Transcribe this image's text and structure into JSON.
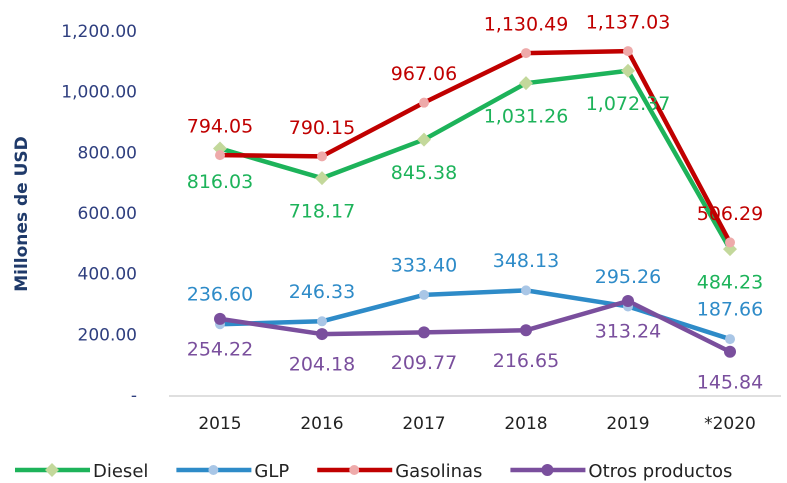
{
  "chart_data": {
    "type": "line",
    "ylabel": "Millones de USD",
    "categories": [
      "2015",
      "2016",
      "2017",
      "2018",
      "2019",
      "*2020"
    ],
    "ylim": [
      0,
      1200
    ],
    "yticks": [
      {
        "value": 0,
        "label": "-"
      },
      {
        "value": 200,
        "label": "200.00"
      },
      {
        "value": 400,
        "label": "400.00"
      },
      {
        "value": 600,
        "label": "600.00"
      },
      {
        "value": 800,
        "label": "800.00"
      },
      {
        "value": 1000,
        "label": "1,000.00"
      },
      {
        "value": 1200,
        "label": "1,200.00"
      }
    ],
    "grid": false,
    "legend": "bottom",
    "series": [
      {
        "name": "Diesel",
        "color": "#1db35a",
        "marker": "diamond",
        "marker_color": "#c3d89b",
        "values": [
          816.03,
          718.17,
          845.38,
          1031.26,
          1072.37,
          484.23
        ],
        "value_labels": [
          "816.03",
          "718.17",
          "845.38",
          "1,031.26",
          "1,072.37",
          "484.23"
        ]
      },
      {
        "name": "GLP",
        "color": "#2e8bc8",
        "marker": "circle",
        "marker_color": "#a9c6e6",
        "values": [
          236.6,
          246.33,
          333.4,
          348.13,
          295.26,
          187.66
        ],
        "value_labels": [
          "236.60",
          "246.33",
          "333.40",
          "348.13",
          "295.26",
          "187.66"
        ]
      },
      {
        "name": "Gasolinas",
        "color": "#c00000",
        "marker": "circle",
        "marker_color": "#eeaaaa",
        "values": [
          794.05,
          790.15,
          967.06,
          1130.49,
          1137.03,
          506.29
        ],
        "value_labels": [
          "794.05",
          "790.15",
          "967.06",
          "1,130.49",
          "1,137.03",
          "506.29"
        ]
      },
      {
        "name": "Otros productos",
        "color": "#7a4f9d",
        "marker": "circle",
        "marker_color": "#7a4f9d",
        "values": [
          254.22,
          204.18,
          209.77,
          216.65,
          313.24,
          145.84
        ],
        "value_labels": [
          "254.22",
          "204.18",
          "209.77",
          "216.65",
          "313.24",
          "145.84"
        ]
      }
    ]
  }
}
